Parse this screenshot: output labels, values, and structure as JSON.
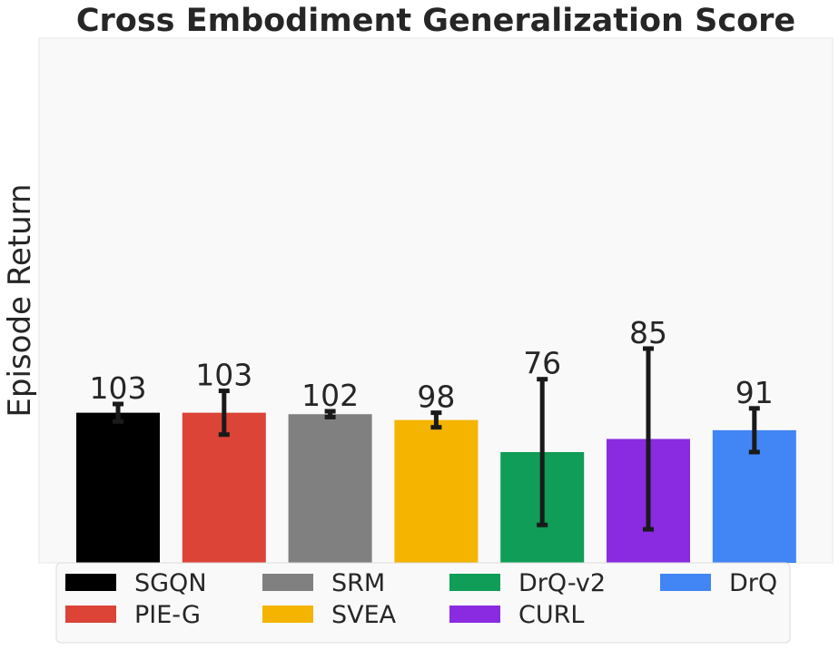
{
  "chart_data": {
    "type": "bar",
    "title": "Cross Embodiment Generalization Score",
    "xlabel": "",
    "ylabel": "Episode Return",
    "categories": [
      "SGQN",
      "PIE-G",
      "SRM",
      "SVEA",
      "DrQ-v2",
      "CURL",
      "DrQ"
    ],
    "values": [
      103,
      103,
      102,
      98,
      76,
      85,
      91
    ],
    "value_labels": [
      "103",
      "103",
      "102",
      "98",
      "76",
      "85",
      "91"
    ],
    "errors": [
      6,
      15,
      2,
      5,
      50,
      62,
      15
    ],
    "colors": [
      "#000000",
      "#db4437",
      "#808080",
      "#f4b400",
      "#0f9d58",
      "#8a2be2",
      "#4285f4"
    ],
    "ylim": [
      0,
      360
    ],
    "grid": false,
    "legend": {
      "position": "bottom",
      "columns": 4,
      "entries": [
        "SGQN",
        "PIE-G",
        "SRM",
        "SVEA",
        "DrQ-v2",
        "CURL",
        "DrQ"
      ]
    },
    "background": "#f9f9f9",
    "errorbar_color": "#1a1a1a"
  }
}
